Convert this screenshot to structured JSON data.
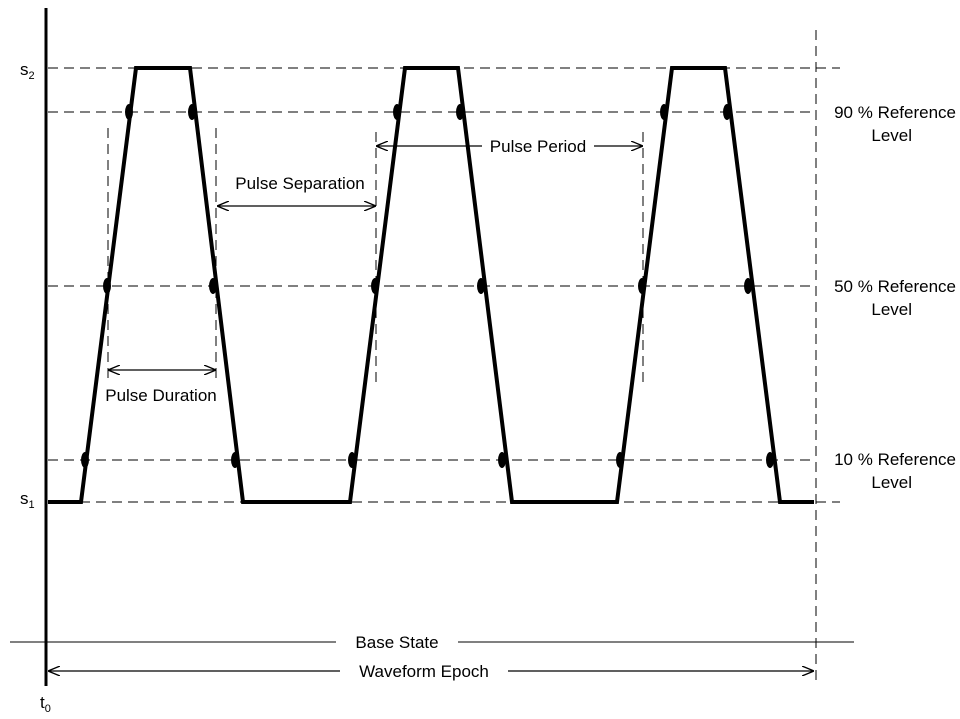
{
  "diagram": {
    "colors": {
      "ink": "#000000",
      "background": "#ffffff"
    },
    "state_labels": {
      "s2": {
        "main": "s",
        "sub": "2"
      },
      "s1": {
        "main": "s",
        "sub": "1"
      },
      "t0": {
        "main": "t",
        "sub": "0"
      }
    },
    "reference_levels": [
      {
        "line1": "90 % Reference",
        "line2": "Level"
      },
      {
        "line1": "50 % Reference",
        "line2": "Level"
      },
      {
        "line1": "10 % Reference",
        "line2": "Level"
      }
    ],
    "annotations": {
      "pulse_period": "Pulse Period",
      "pulse_separation": "Pulse Separation",
      "pulse_duration": "Pulse Duration",
      "base_state": "Base State",
      "waveform_epoch": "Waveform Epoch"
    }
  }
}
